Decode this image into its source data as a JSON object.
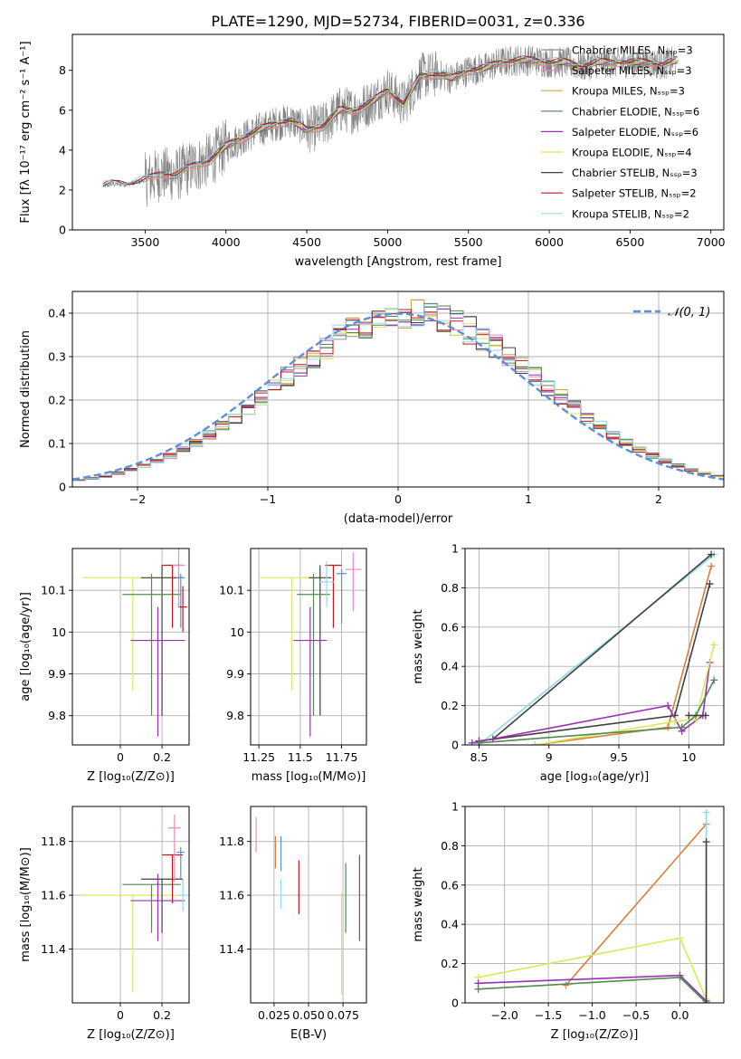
{
  "figure_title": "PLATE=1290, MJD=52734, FIBERID=0031, z=0.336",
  "colors": {
    "spectrum": "#808080",
    "normal_curve": "#5b8fd9",
    "grid": "#b0b0b0",
    "models": [
      "#8c8c8c",
      "#e889b8",
      "#d6a24a",
      "#4f8a4f",
      "#9a2fb4",
      "#d8e85a",
      "#404040",
      "#c0181f",
      "#8fd8e8",
      "#5b8fd9",
      "#f08080",
      "#d87f3a",
      "#9acd32"
    ]
  },
  "chart_data": [
    {
      "type": "line",
      "id": "spectrum",
      "title": "PLATE=1290, MJD=52734, FIBERID=0031, z=0.336",
      "xlabel": "wavelength [Angstrom, rest frame]",
      "ylabel": "Flux [fλ 10⁻¹⁷ erg cm⁻² s⁻¹ A⁻¹]",
      "xlim": [
        3050,
        7080
      ],
      "ylim": [
        0,
        9.8
      ],
      "xticks": [
        3500,
        4000,
        4500,
        5000,
        5500,
        6000,
        6500,
        7000
      ],
      "yticks": [
        0,
        2,
        4,
        6,
        8
      ],
      "grid": false,
      "legend_position": "top-right",
      "legend": [
        {
          "label": "Chabrier MILES, N_SSP=3",
          "color": "#8c8c8c"
        },
        {
          "label": "Salpeter MILES, N_SSP=3",
          "color": "#e889b8"
        },
        {
          "label": "Kroupa MILES, N_SSP=3",
          "color": "#d6a24a"
        },
        {
          "label": "Chabrier ELODIE, N_SSP=6",
          "color": "#4f8a4f"
        },
        {
          "label": "Salpeter ELODIE, N_SSP=6",
          "color": "#9a2fb4"
        },
        {
          "label": "Kroupa ELODIE, N_SSP=4",
          "color": "#d8e85a"
        },
        {
          "label": "Chabrier STELIB, N_SSP=3",
          "color": "#404040"
        },
        {
          "label": "Salpeter STELIB, N_SSP=2",
          "color": "#c0181f"
        },
        {
          "label": "Kroupa STELIB, N_SSP=2",
          "color": "#8fd8e8"
        }
      ],
      "model_continuum": {
        "x": [
          3240,
          3300,
          3400,
          3500,
          3600,
          3700,
          3800,
          3900,
          4000,
          4100,
          4200,
          4300,
          4400,
          4500,
          4600,
          4700,
          4800,
          4900,
          5000,
          5100,
          5200,
          5300,
          5400,
          5500,
          5600,
          5700,
          5800,
          5900,
          6000,
          6100,
          6200,
          6300,
          6400,
          6500,
          6600,
          6700,
          6800,
          6900,
          7000
        ],
        "y": [
          2.2,
          2.3,
          2.3,
          2.5,
          2.8,
          2.8,
          3.2,
          3.5,
          4.2,
          4.6,
          5.0,
          5.3,
          5.5,
          5.0,
          5.2,
          6.0,
          6.0,
          6.4,
          7.0,
          6.3,
          7.7,
          7.8,
          7.6,
          8.0,
          8.1,
          8.4,
          8.5,
          8.5,
          8.4,
          8.4,
          8.2,
          8.4,
          8.4,
          8.4,
          8.4,
          8.3,
          8.5,
          8.5,
          8.5
        ]
      }
    },
    {
      "type": "line",
      "id": "residuals",
      "xlabel": "(data-model)/error",
      "ylabel": "Normed distribution",
      "xlim": [
        -2.5,
        2.5
      ],
      "ylim": [
        0,
        0.45
      ],
      "xticks": [
        -2,
        -1,
        0,
        1,
        2
      ],
      "xtick_labels": [
        "−2",
        "−1",
        "0",
        "1",
        "2"
      ],
      "yticks": [
        0.0,
        0.1,
        0.2,
        0.3,
        0.4
      ],
      "grid": true,
      "legend_position": "top-right",
      "legend": [
        {
          "label": "𝒩(0, 1)",
          "color": "#5b8fd9"
        }
      ],
      "normal_curve": {
        "mean": 0,
        "sigma": 1
      },
      "histogram_bin_width": 0.1
    },
    {
      "type": "scatter",
      "id": "age-vs-Z",
      "xlabel": "Z [log₁₀(Z/Z⊙)]",
      "ylabel": "age  [log₁₀(age/yr)]",
      "xlim": [
        -0.23,
        0.33
      ],
      "ylim": [
        9.73,
        10.2
      ],
      "xticks": [
        0.0,
        0.2
      ],
      "yticks": [
        9.8,
        9.9,
        10.0,
        10.1
      ],
      "grid": true,
      "points": [
        {
          "x": 0.06,
          "y": 10.13,
          "xerr": 0.24,
          "yerr": [
            0.27,
            0.0
          ],
          "color": "#d8e85a"
        },
        {
          "x": 0.2,
          "y": 10.13,
          "xerr": 0.1,
          "yerr": [
            0.33,
            0.03
          ],
          "color": "#404040"
        },
        {
          "x": 0.15,
          "y": 10.09,
          "xerr": 0.14,
          "yerr": [
            0.29,
            0.05
          ],
          "color": "#4f8a4f"
        },
        {
          "x": 0.25,
          "y": 10.16,
          "xerr": 0.05,
          "yerr": [
            0.15,
            0.0
          ],
          "color": "#c0181f"
        },
        {
          "x": 0.28,
          "y": 10.16,
          "xerr": 0.03,
          "yerr": [
            0.1,
            0.04
          ],
          "color": "#e889b8"
        },
        {
          "x": 0.29,
          "y": 10.13,
          "xerr": 0.02,
          "yerr": [
            0.12,
            0.01
          ],
          "color": "#5b8fd9"
        },
        {
          "x": 0.18,
          "y": 9.98,
          "xerr": 0.13,
          "yerr": [
            0.23,
            0.08
          ],
          "color": "#9a2fb4"
        },
        {
          "x": 0.3,
          "y": 10.06,
          "xerr": 0.02,
          "yerr": [
            0.06,
            0.05
          ],
          "color": "#c0181f"
        }
      ]
    },
    {
      "type": "scatter",
      "id": "age-vs-mass",
      "xlabel": "mass [log₁₀(M/M⊙)]",
      "ylabel": "",
      "xlim": [
        11.2,
        11.9
      ],
      "ylim": [
        9.73,
        10.2
      ],
      "xticks": [
        11.25,
        11.5,
        11.75
      ],
      "yticks": [
        9.8,
        9.9,
        10.0,
        10.1
      ],
      "grid": true,
      "points": [
        {
          "x": 11.45,
          "y": 10.13,
          "xerr": 0.2,
          "yerr": [
            0.27,
            0.0
          ],
          "color": "#d8e85a"
        },
        {
          "x": 11.62,
          "y": 10.13,
          "xerr": 0.07,
          "yerr": [
            0.33,
            0.03
          ],
          "color": "#404040"
        },
        {
          "x": 11.58,
          "y": 10.09,
          "xerr": 0.1,
          "yerr": [
            0.29,
            0.05
          ],
          "color": "#4f8a4f"
        },
        {
          "x": 11.7,
          "y": 10.16,
          "xerr": 0.05,
          "yerr": [
            0.15,
            0.0
          ],
          "color": "#c0181f"
        },
        {
          "x": 11.82,
          "y": 10.15,
          "xerr": 0.05,
          "yerr": [
            0.1,
            0.04
          ],
          "color": "#e889b8"
        },
        {
          "x": 11.75,
          "y": 10.14,
          "xerr": 0.03,
          "yerr": [
            0.12,
            0.01
          ],
          "color": "#5b8fd9"
        },
        {
          "x": 11.56,
          "y": 9.98,
          "xerr": 0.1,
          "yerr": [
            0.23,
            0.08
          ],
          "color": "#9a2fb4"
        },
        {
          "x": 11.66,
          "y": 10.12,
          "xerr": 0.05,
          "yerr": [
            0.06,
            0.05
          ],
          "color": "#8fd8e8"
        }
      ]
    },
    {
      "type": "line",
      "id": "massweight-vs-age",
      "xlabel": "age  [log₁₀(age/yr)]",
      "ylabel": "mass weight",
      "xlim": [
        8.4,
        10.25
      ],
      "ylim": [
        0.0,
        1.0
      ],
      "xticks": [
        8.5,
        9.0,
        9.5,
        10.0
      ],
      "yticks": [
        0.0,
        0.2,
        0.4,
        0.6,
        0.8,
        1.0
      ],
      "grid": true,
      "series": [
        {
          "color": "#8fd8e8",
          "x": [
            8.5,
            10.18
          ],
          "y": [
            0.0,
            0.97
          ]
        },
        {
          "color": "#404040",
          "x": [
            8.6,
            10.16
          ],
          "y": [
            0.03,
            0.97
          ]
        },
        {
          "color": "#d87f3a",
          "x": [
            8.9,
            9.85,
            10.16
          ],
          "y": [
            0.0,
            0.09,
            0.91
          ]
        },
        {
          "color": "#404040",
          "x": [
            8.5,
            9.9,
            10.15
          ],
          "y": [
            0.02,
            0.15,
            0.82
          ]
        },
        {
          "color": "#9a2fb4",
          "x": [
            8.45,
            9.85,
            9.95,
            10.1,
            10.15
          ],
          "y": [
            0.01,
            0.2,
            0.07,
            0.15,
            0.42
          ]
        },
        {
          "color": "#d8e85a",
          "x": [
            8.9,
            9.9,
            10.05,
            10.18
          ],
          "y": [
            0.0,
            0.12,
            0.13,
            0.51
          ]
        },
        {
          "color": "#4f8a4f",
          "x": [
            8.5,
            9.95,
            10.05,
            10.18
          ],
          "y": [
            0.01,
            0.09,
            0.15,
            0.33
          ]
        },
        {
          "color": "#404040",
          "x": [
            10.0,
            10.12
          ],
          "y": [
            0.15,
            0.15
          ]
        }
      ]
    },
    {
      "type": "scatter",
      "id": "mass-vs-Z",
      "xlabel": "Z [log₁₀(Z/Z⊙)]",
      "ylabel": "mass [log₁₀(M/M⊙)]",
      "xlim": [
        -0.23,
        0.33
      ],
      "ylim": [
        11.2,
        11.93
      ],
      "xticks": [
        0.0,
        0.2
      ],
      "yticks": [
        11.4,
        11.6,
        11.8
      ],
      "grid": true,
      "points": [
        {
          "x": 0.06,
          "y": 11.6,
          "xerr": 0.24,
          "yerr": [
            0.36,
            0.0
          ],
          "color": "#d8e85a"
        },
        {
          "x": 0.2,
          "y": 11.66,
          "xerr": 0.1,
          "yerr": [
            0.2,
            0.0
          ],
          "color": "#404040"
        },
        {
          "x": 0.15,
          "y": 11.64,
          "xerr": 0.14,
          "yerr": [
            0.18,
            0.0
          ],
          "color": "#4f8a4f"
        },
        {
          "x": 0.25,
          "y": 11.75,
          "xerr": 0.05,
          "yerr": [
            0.18,
            0.0
          ],
          "color": "#c0181f"
        },
        {
          "x": 0.26,
          "y": 11.85,
          "xerr": 0.03,
          "yerr": [
            0.2,
            0.05
          ],
          "color": "#e889b8"
        },
        {
          "x": 0.29,
          "y": 11.76,
          "xerr": 0.02,
          "yerr": [
            0.1,
            0.02
          ],
          "color": "#5b8fd9"
        },
        {
          "x": 0.18,
          "y": 11.58,
          "xerr": 0.13,
          "yerr": [
            0.15,
            0.1
          ],
          "color": "#9a2fb4"
        },
        {
          "x": 0.3,
          "y": 11.6,
          "xerr": 0.02,
          "yerr": [
            0.06,
            0.06
          ],
          "color": "#8fd8e8"
        }
      ]
    },
    {
      "type": "scatter",
      "id": "mass-vs-EBV",
      "xlabel": "E(B-V)",
      "ylabel": "",
      "xlim": [
        0.008,
        0.092
      ],
      "ylim": [
        11.2,
        11.93
      ],
      "xticks": [
        0.025,
        0.05,
        0.075
      ],
      "xtick_labels": [
        "0.025",
        "0.050",
        "0.075"
      ],
      "yticks": [
        11.4,
        11.6,
        11.8
      ],
      "grid": true,
      "points": [
        {
          "x": 0.012,
          "y": 11.82,
          "yerr": [
            0.06,
            0.07
          ],
          "color": "#e889b8"
        },
        {
          "x": 0.026,
          "y": 11.76,
          "yerr": [
            0.06,
            0.06
          ],
          "color": "#d87f3a"
        },
        {
          "x": 0.03,
          "y": 11.75,
          "yerr": [
            0.06,
            0.07
          ],
          "color": "#5b8fd9"
        },
        {
          "x": 0.03,
          "y": 11.61,
          "yerr": [
            0.06,
            0.05
          ],
          "color": "#8fd8e8"
        },
        {
          "x": 0.043,
          "y": 11.66,
          "yerr": [
            0.13,
            0.07
          ],
          "color": "#c0181f"
        },
        {
          "x": 0.074,
          "y": 11.45,
          "yerr": [
            0.22,
            0.16
          ],
          "color": "#d8e85a"
        },
        {
          "x": 0.077,
          "y": 11.62,
          "yerr": [
            0.16,
            0.1
          ],
          "color": "#4f8a4f"
        },
        {
          "x": 0.087,
          "y": 11.6,
          "yerr": [
            0.17,
            0.15
          ],
          "color": "#9a2fb4"
        }
      ]
    },
    {
      "type": "line",
      "id": "massweight-vs-Z",
      "xlabel": "Z [log₁₀(Z/Z⊙)]",
      "ylabel": "mass weight",
      "xlim": [
        -2.45,
        0.5
      ],
      "ylim": [
        0.0,
        1.0
      ],
      "xticks": [
        -2.0,
        -1.5,
        -1.0,
        -0.5,
        0.0
      ],
      "xtick_labels": [
        "−2.0",
        "−1.5",
        "−1.0",
        "−0.5",
        "0.0"
      ],
      "yticks": [
        0.0,
        0.2,
        0.4,
        0.6,
        0.8,
        1.0
      ],
      "grid": true,
      "series": [
        {
          "color": "#d87f3a",
          "x": [
            -1.3,
            0.3
          ],
          "y": [
            0.09,
            0.91
          ]
        },
        {
          "color": "#d8e85a",
          "x": [
            -2.3,
            0.0,
            0.3
          ],
          "y": [
            0.13,
            0.33,
            0.02
          ]
        },
        {
          "color": "#9a2fb4",
          "x": [
            -2.3,
            0.0,
            0.3
          ],
          "y": [
            0.1,
            0.14,
            0.01
          ]
        },
        {
          "color": "#4f8a4f",
          "x": [
            -2.3,
            0.0,
            0.3
          ],
          "y": [
            0.07,
            0.13,
            0.0
          ]
        },
        {
          "color": "#8fd8e8",
          "x": [
            0.3,
            0.3
          ],
          "y": [
            0.0,
            0.97
          ]
        },
        {
          "color": "#404040",
          "x": [
            0.3,
            0.3
          ],
          "y": [
            0.0,
            0.82
          ]
        }
      ]
    }
  ]
}
